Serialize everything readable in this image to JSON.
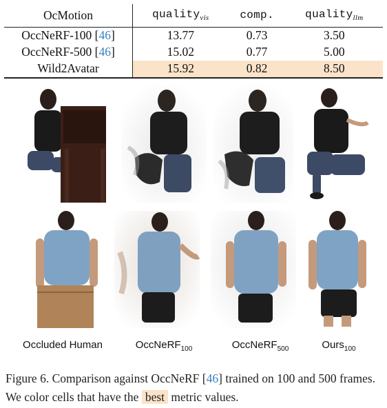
{
  "table": {
    "header": {
      "c0": "OcMotion",
      "c1_main": "quality",
      "c1_sub": "vis",
      "c2": "comp.",
      "c3_main": "quality",
      "c3_sub": "llm"
    },
    "rows": [
      {
        "method": "OccNeRF-100",
        "cite": "46",
        "quality_vis": "13.77",
        "comp": "0.73",
        "quality_llm": "3.50",
        "best": false
      },
      {
        "method": "OccNeRF-500",
        "cite": "46",
        "quality_vis": "15.02",
        "comp": "0.77",
        "quality_llm": "5.00",
        "best": false
      },
      {
        "method": "Wild2Avatar",
        "cite": "",
        "quality_vis": "15.92",
        "comp": "0.82",
        "quality_llm": "8.50",
        "best": true
      }
    ]
  },
  "figure": {
    "columns": [
      {
        "label": "Occluded Human",
        "sub": ""
      },
      {
        "label": "OccNeRF",
        "sub": "100"
      },
      {
        "label": "OccNeRF",
        "sub": "500"
      },
      {
        "label": "Ours",
        "sub": "100"
      }
    ]
  },
  "caption": {
    "prefix": "Figure 6. Comparison against OccNeRF [",
    "cite": "46",
    "middle": "] trained on 100 and 500 frames. We color cells that have the ",
    "highlight": "best",
    "suffix": " metric values."
  },
  "colors": {
    "best_highlight": "#fbe3c9",
    "citation": "#3b7fbf"
  }
}
